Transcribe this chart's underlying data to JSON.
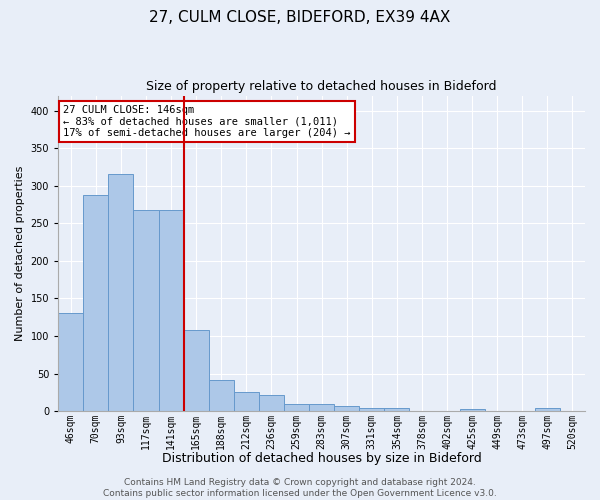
{
  "title": "27, CULM CLOSE, BIDEFORD, EX39 4AX",
  "subtitle": "Size of property relative to detached houses in Bideford",
  "xlabel": "Distribution of detached houses by size in Bideford",
  "ylabel": "Number of detached properties",
  "categories": [
    "46sqm",
    "70sqm",
    "93sqm",
    "117sqm",
    "141sqm",
    "165sqm",
    "188sqm",
    "212sqm",
    "236sqm",
    "259sqm",
    "283sqm",
    "307sqm",
    "331sqm",
    "354sqm",
    "378sqm",
    "402sqm",
    "425sqm",
    "449sqm",
    "473sqm",
    "497sqm",
    "520sqm"
  ],
  "values": [
    130,
    288,
    315,
    268,
    268,
    108,
    42,
    25,
    22,
    10,
    9,
    7,
    4,
    4,
    0,
    0,
    3,
    0,
    0,
    4,
    0
  ],
  "bar_color": "#adc8e8",
  "bar_edge_color": "#6699cc",
  "background_color": "#e8eef8",
  "grid_color": "#ffffff",
  "red_line_x": 4.5,
  "red_line_color": "#cc0000",
  "annotation_line1": "27 CULM CLOSE: 146sqm",
  "annotation_line2": "← 83% of detached houses are smaller (1,011)",
  "annotation_line3": "17% of semi-detached houses are larger (204) →",
  "annotation_box_color": "#ffffff",
  "annotation_box_edge": "#cc0000",
  "footer_line1": "Contains HM Land Registry data © Crown copyright and database right 2024.",
  "footer_line2": "Contains public sector information licensed under the Open Government Licence v3.0.",
  "ylim": [
    0,
    420
  ],
  "yticks": [
    0,
    50,
    100,
    150,
    200,
    250,
    300,
    350,
    400
  ],
  "title_fontsize": 11,
  "subtitle_fontsize": 9,
  "xlabel_fontsize": 9,
  "ylabel_fontsize": 8,
  "tick_fontsize": 7,
  "annotation_fontsize": 7.5,
  "footer_fontsize": 6.5
}
